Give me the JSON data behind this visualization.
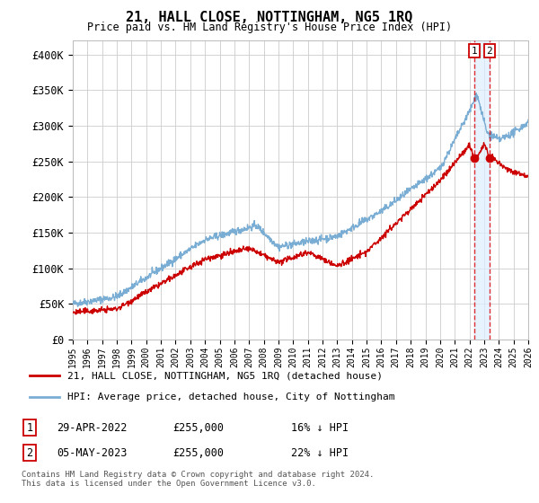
{
  "title": "21, HALL CLOSE, NOTTINGHAM, NG5 1RQ",
  "subtitle": "Price paid vs. HM Land Registry's House Price Index (HPI)",
  "ylim": [
    0,
    420000
  ],
  "yticks": [
    0,
    50000,
    100000,
    150000,
    200000,
    250000,
    300000,
    350000,
    400000
  ],
  "ytick_labels": [
    "£0",
    "£50K",
    "£100K",
    "£150K",
    "£200K",
    "£250K",
    "£300K",
    "£350K",
    "£400K"
  ],
  "legend_line1": "21, HALL CLOSE, NOTTINGHAM, NG5 1RQ (detached house)",
  "legend_line2": "HPI: Average price, detached house, City of Nottingham",
  "annotation1_num": "1",
  "annotation1_date": "29-APR-2022",
  "annotation1_price": "£255,000",
  "annotation1_hpi": "16% ↓ HPI",
  "annotation2_num": "2",
  "annotation2_date": "05-MAY-2023",
  "annotation2_price": "£255,000",
  "annotation2_hpi": "22% ↓ HPI",
  "footer": "Contains HM Land Registry data © Crown copyright and database right 2024.\nThis data is licensed under the Open Government Licence v3.0.",
  "line_color_red": "#cc0000",
  "line_color_blue": "#7aadd4",
  "vline_color": "#dd0000",
  "shade_color": "#ddeeff",
  "grid_color": "#cccccc",
  "background_color": "#ffffff",
  "sale1_year": 2022.33,
  "sale2_year": 2023.37,
  "sale_price": 255000
}
